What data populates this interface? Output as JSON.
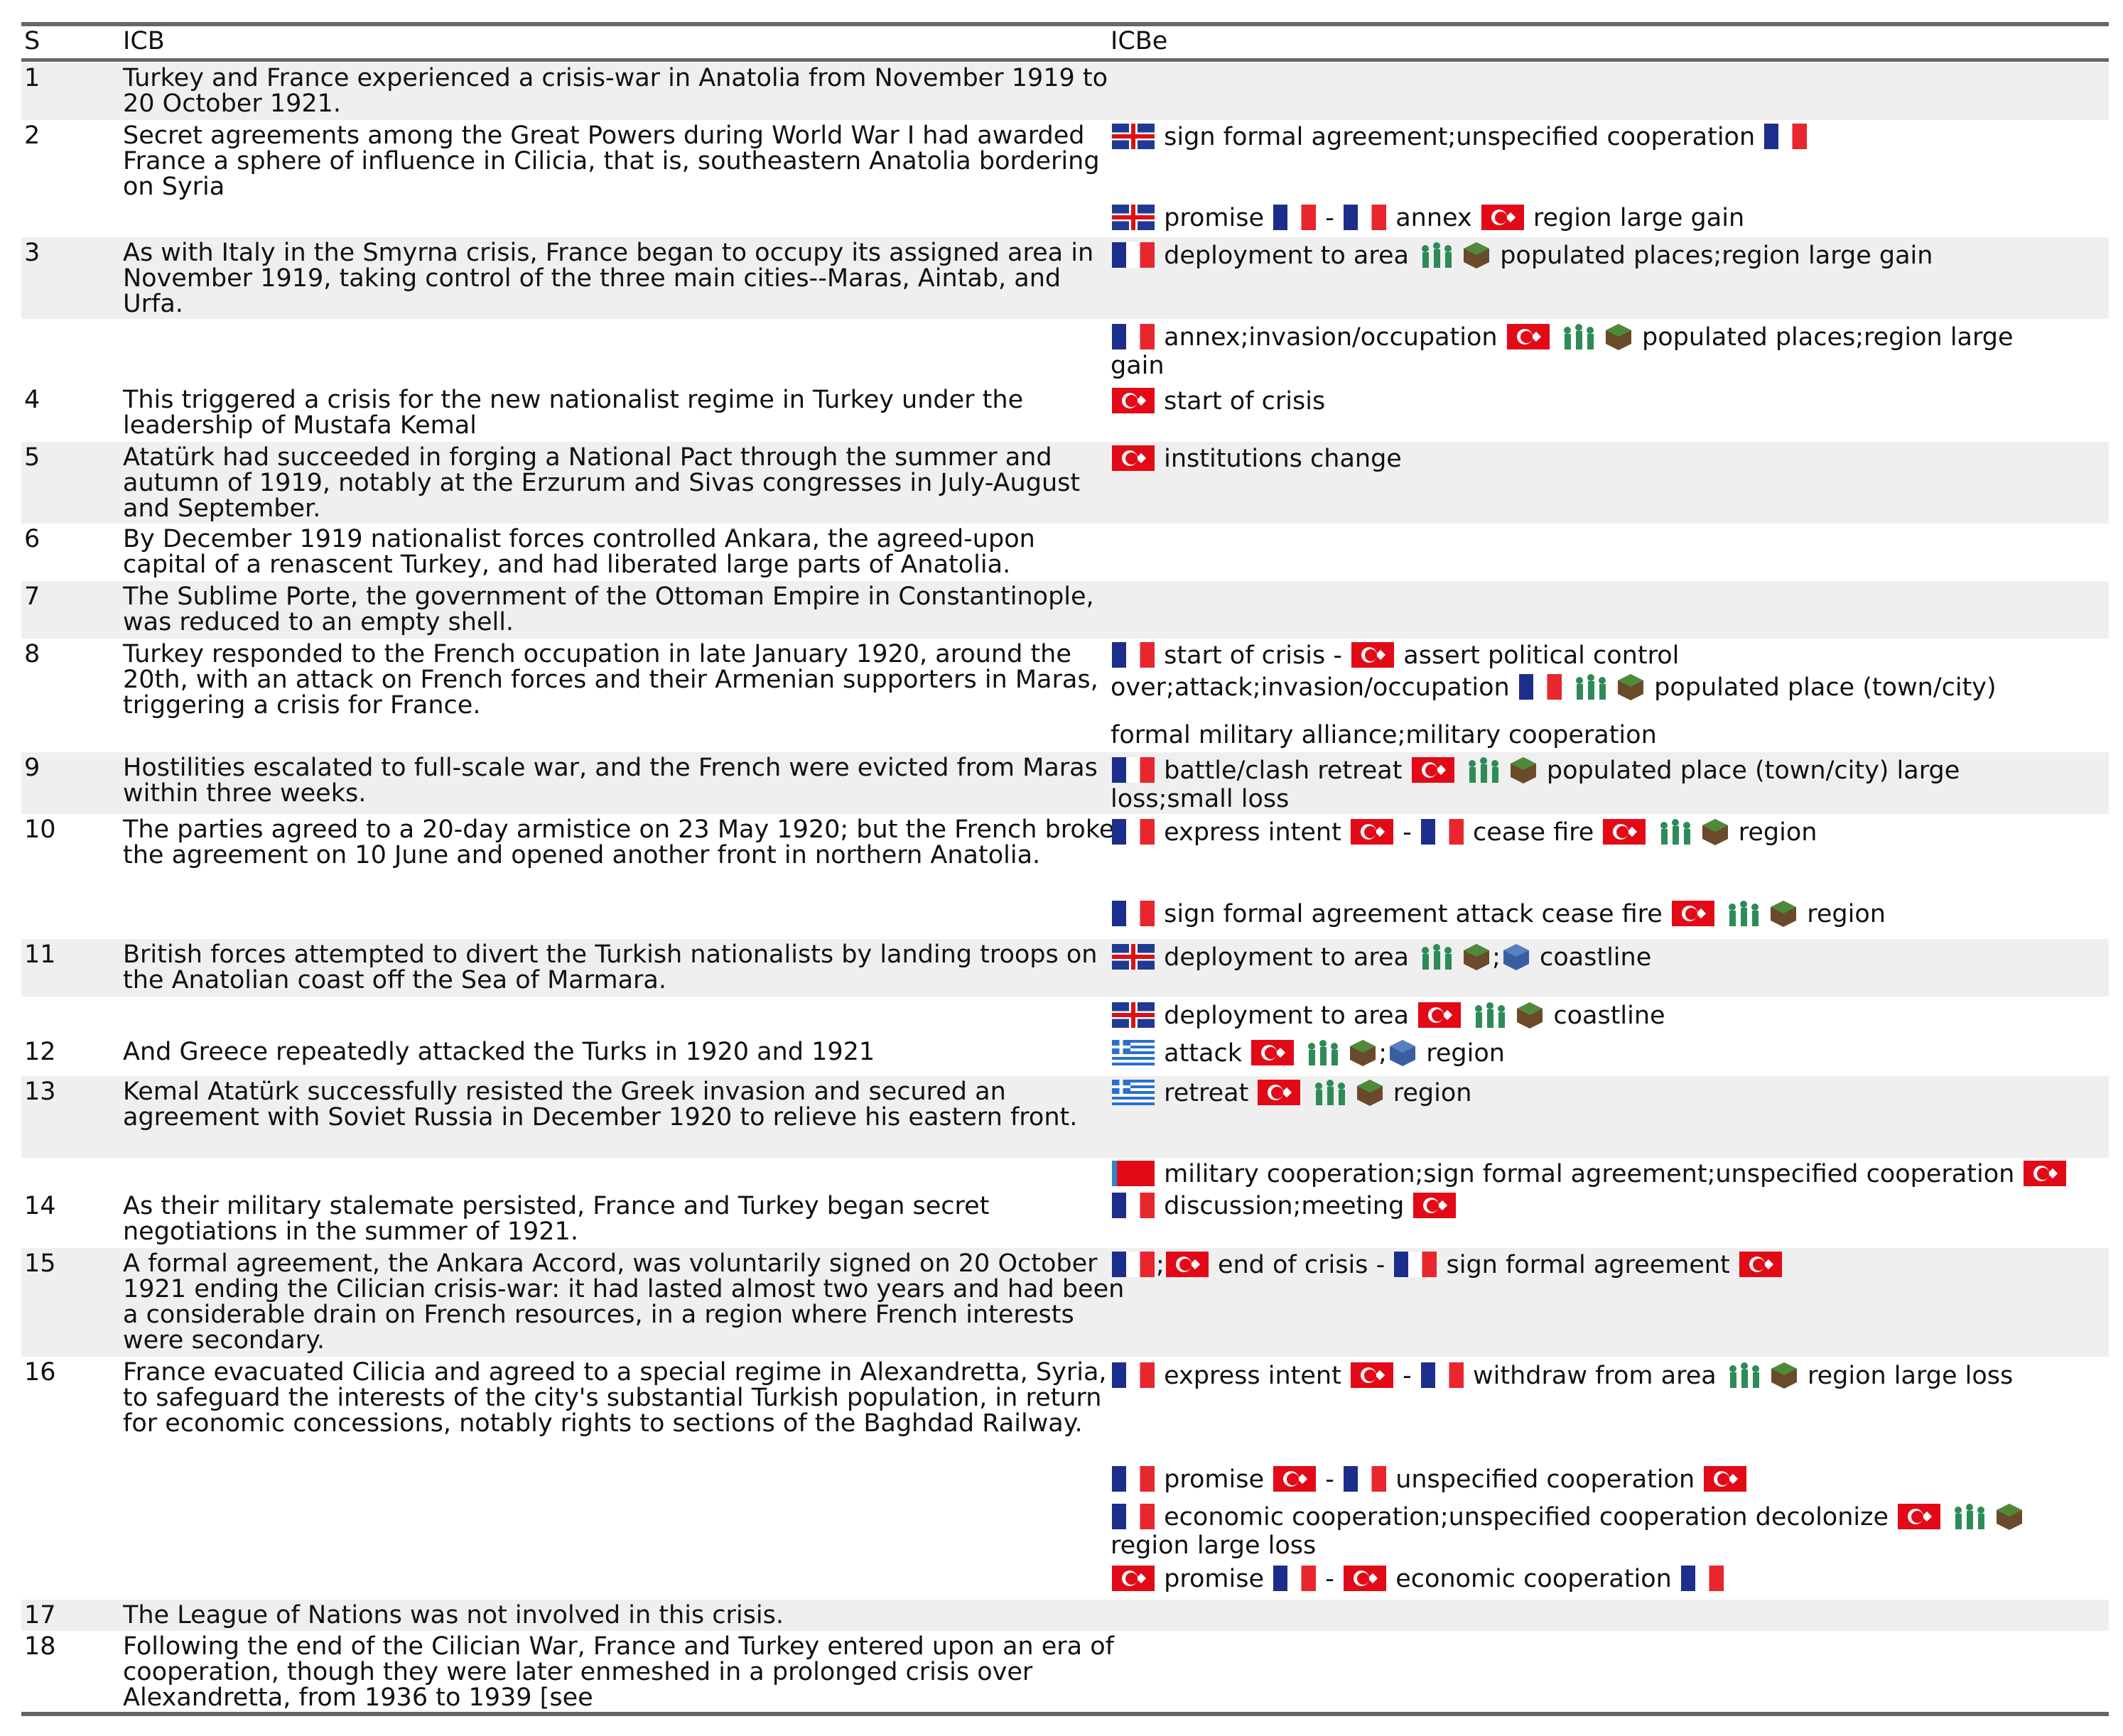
{
  "header": {
    "s": "S",
    "icb": "ICB",
    "icbe": "ICBe"
  },
  "colors": {
    "rule": "#666666",
    "shade": "#efefef",
    "fr_blue": "#1c2e8c",
    "fr_red": "#e8262d",
    "tr_red": "#e30a17",
    "gb_blue": "#1f3a93",
    "gr_blue": "#2a6fd1",
    "soldier_green": "#2e8b57",
    "box_brown": "#6b4a2b",
    "box_blue": "#3a5fa0"
  },
  "icons": {
    "france": "france-flag-icon",
    "turkey": "turkey-flag-icon",
    "uk": "uk-flag-icon",
    "greece": "greece-flag-icon",
    "russia": "russia-flag-icon",
    "soldier": "soldiers-icon",
    "land": "land-block-icon",
    "sea": "sea-block-icon"
  },
  "rows": [
    {
      "s": "1",
      "icb": "Turkey and France experienced a crisis-war in Anatolia from November 1919 to 20 October 1921."
    },
    {
      "s": "2",
      "icb": "Secret agreements among the Great Powers during World War I had awarded France a sphere of influence in Cilicia, that is, southeastern Anatolia bordering on Syria"
    },
    {
      "s": "3",
      "icb": "As with Italy in the Smyrna crisis, France began to occupy its assigned area in November 1919, taking control of the three main cities--Maras, Aintab, and Urfa."
    },
    {
      "s": "4",
      "icb": "This triggered a crisis for the new nationalist regime in Turkey under the leadership of Mustafa Kemal"
    },
    {
      "s": "5",
      "icb": "Atatürk had succeeded in forging a National Pact through the summer and autumn of 1919, notably at the Erzurum and Sivas congresses in July-August and September."
    },
    {
      "s": "6",
      "icb": "By December 1919 nationalist forces controlled Ankara, the agreed-upon capital of a renascent Turkey, and had liberated large parts of Anatolia."
    },
    {
      "s": "7",
      "icb": "The Sublime Porte, the government of the Ottoman Empire in Constantinople, was reduced to an empty shell."
    },
    {
      "s": "8",
      "icb": "Turkey responded to the French occupation in late January 1920, around the 20th, with an attack on French forces and their Armenian supporters in Maras, triggering a crisis for France."
    },
    {
      "s": "9",
      "icb": "Hostilities escalated to full-scale war, and the French were evicted from Maras within three weeks."
    },
    {
      "s": "10",
      "icb": "The parties agreed to a 20-day armistice on 23 May 1920; but the French broke the agreement on 10 June and opened another front in northern Anatolia."
    },
    {
      "s": "11",
      "icb": "British forces attempted to divert the Turkish nationalists by landing troops on the Anatolian coast off the Sea of Marmara."
    },
    {
      "s": "12",
      "icb": "And Greece repeatedly attacked the Turks in 1920 and 1921"
    },
    {
      "s": "13",
      "icb": "Kemal Atatürk successfully resisted the Greek invasion and secured an agreement with Soviet Russia in December 1920 to relieve his eastern front."
    },
    {
      "s": "14",
      "icb": "As their military stalemate persisted, France and Turkey began secret negotiations in the summer of 1921."
    },
    {
      "s": "15",
      "icb": "A formal agreement, the Ankara Accord, was voluntarily signed on 20 October 1921 ending the Cilician crisis-war: it had lasted almost two years and had been a considerable drain on French resources, in a region where French interests were secondary."
    },
    {
      "s": "16",
      "icb": "France evacuated Cilicia and agreed to a special regime in Alexandretta, Syria, to safeguard the interests of the city's substantial Turkish population, in return for economic concessions, notably rights to sections of the Baghdad Railway."
    },
    {
      "s": "17",
      "icb": "The League of Nations was not involved in this crisis."
    },
    {
      "s": "18",
      "icb": "Following the end of the Cilician War, France and Turkey entered upon an era of cooperation, though they were later enmeshed in a prolonged crisis over Alexandretta, from 1936 to 1939 [see"
    }
  ],
  "events": {
    "e2a": "sign formal agreement;unspecified cooperation",
    "e2b1": "promise",
    "e2b2": "-",
    "e2b3": "annex",
    "e2b4": "region large gain",
    "e3a1": "deployment to area",
    "e3a2": "populated places;region large gain",
    "e3b1": "annex;invasion/occupation",
    "e3b2": "populated places;region large",
    "e3b3": "gain",
    "e4": "start of crisis",
    "e5": "institutions change",
    "e8a1": "start of crisis",
    "e8a2": "-",
    "e8a3": "assert political control",
    "e8b1": "over;attack;invasion/occupation",
    "e8b2": "populated place (town/city)",
    "e8c": "formal military alliance;military cooperation",
    "e9a1": "battle/clash retreat",
    "e9a2": "populated place (town/city) large",
    "e9b": "loss;small loss",
    "e10a1": "express intent",
    "e10a2": "-",
    "e10a3": "cease fire",
    "e10a4": "region",
    "e10b1": "sign formal agreement attack cease fire",
    "e10b2": "region",
    "e11a1": "deployment to area",
    "e11a2": ";",
    "e11a3": "coastline",
    "e11b1": "deployment to area",
    "e11b2": "coastline",
    "e12a1": "attack",
    "e12a2": ";",
    "e12a3": "region",
    "e13a1": "retreat",
    "e13a2": "region",
    "e13b": "military cooperation;sign formal agreement;unspecified cooperation",
    "e14": "discussion;meeting",
    "e15a1": ";",
    "e15a2": "end of crisis",
    "e15a3": "-",
    "e15a4": "sign formal agreement",
    "e16a1": "express intent",
    "e16a2": "-",
    "e16a3": "withdraw from area",
    "e16a4": "region large loss",
    "e16b1": "promise",
    "e16b2": "-",
    "e16b3": "unspecified cooperation",
    "e16c1": "economic cooperation;unspecified cooperation decolonize",
    "e16c2": "region large loss",
    "e16d1": "promise",
    "e16d2": "-",
    "e16d3": "economic cooperation"
  }
}
